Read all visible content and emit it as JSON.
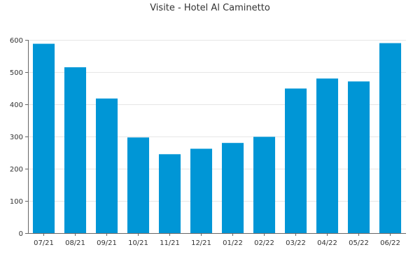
{
  "chart_data": {
    "type": "bar",
    "title": "Visite - Hotel Al Caminetto",
    "xlabel": "",
    "ylabel": "",
    "categories": [
      "07/21",
      "08/21",
      "09/21",
      "10/21",
      "11/21",
      "12/21",
      "01/22",
      "02/22",
      "03/22",
      "04/22",
      "05/22",
      "06/22"
    ],
    "values": [
      588,
      515,
      418,
      297,
      245,
      262,
      280,
      299,
      449,
      480,
      471,
      590
    ],
    "ylim": [
      0,
      600
    ],
    "yticks": [
      0,
      100,
      200,
      300,
      400,
      500,
      600
    ],
    "ytick_labels": [
      "0",
      "100",
      "200",
      "300",
      "400",
      "500",
      "600"
    ],
    "grid": true,
    "legend": "none",
    "colors": {
      "bar": "#0096d6",
      "grid": "#e6e6e6",
      "axis": "#666666",
      "text": "#333333"
    }
  }
}
